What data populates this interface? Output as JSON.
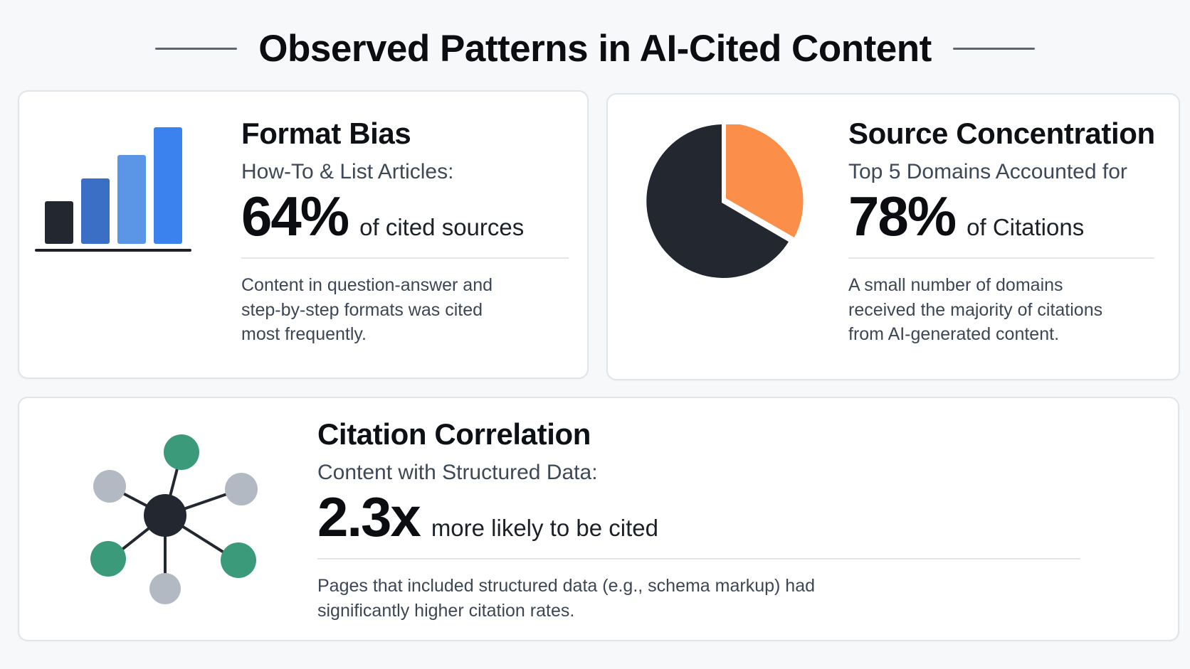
{
  "header": {
    "title": "Observed Patterns in AI-Cited Content"
  },
  "cards": [
    {
      "title": "Format Bias",
      "subtitle": "How-To & List Articles:",
      "stat_value": "64%",
      "stat_label": "of cited sources",
      "description": "Content in question-answer and step-by-step formats was cited most frequently.",
      "icon": "bar-chart-icon",
      "colors": {
        "bars": [
          "#23272f",
          "#3b6fc6",
          "#5a95e6",
          "#3b82ee"
        ],
        "baseline": "#1d2127"
      }
    },
    {
      "title": "Source Concentration",
      "subtitle": "Top 5 Domains Accounted for",
      "stat_value": "78%",
      "stat_label": "of Citations",
      "description": "A small number of domains received the majority of citations from AI-generated content.",
      "icon": "pie-chart-icon",
      "colors": {
        "main": "#23272f",
        "slice": "#fb8f4a"
      }
    },
    {
      "title": "Citation Correlation",
      "subtitle": "Content with Structured Data:",
      "stat_value": "2.3x",
      "stat_label": "more likely to be cited",
      "description": "Pages that included structured data (e.g., schema markup) had significantly higher citation rates.",
      "icon": "network-icon",
      "colors": {
        "hub": "#23272f",
        "green": "#3a9a7a",
        "gray": "#b3b9c2",
        "edge": "#23272f"
      }
    }
  ]
}
